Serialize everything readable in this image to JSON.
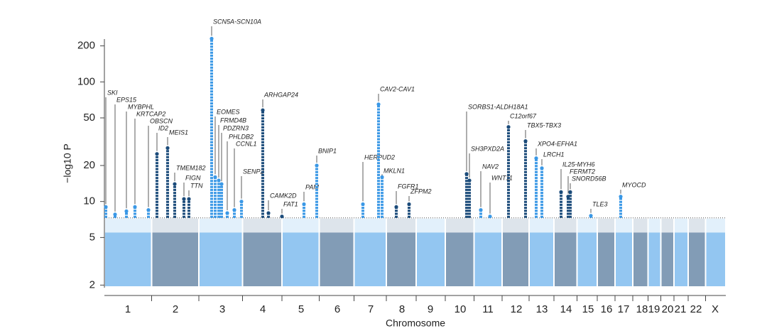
{
  "chart_data": {
    "type": "manhattan",
    "x_label": "Chromosome",
    "y_label": "−log10 P",
    "categories": [
      "1",
      "2",
      "3",
      "4",
      "5",
      "6",
      "7",
      "8",
      "9",
      "10",
      "11",
      "12",
      "13",
      "14",
      "15",
      "16",
      "17",
      "18",
      "19",
      "20",
      "21",
      "22",
      "X"
    ],
    "colors": [
      "#3a98e6",
      "#1b4b7a"
    ],
    "log_y": true,
    "ylim": [
      1.66,
      280
    ],
    "yticks": [
      2,
      5,
      10,
      20,
      50,
      100,
      200
    ],
    "threshold": 7.3,
    "loci": [
      {
        "name": "SKI",
        "chromosome": 0,
        "value": 9
      },
      {
        "name": "EPS15",
        "chromosome": 0,
        "value": 7.8
      },
      {
        "name": "MYBPHL",
        "chromosome": 0,
        "value": 8.3
      },
      {
        "name": "KRTCAP2",
        "chromosome": 0,
        "value": 9
      },
      {
        "name": "OBSCN",
        "chromosome": 0,
        "value": 8.5
      },
      {
        "name": "ID2",
        "chromosome": 1,
        "value": 25
      },
      {
        "name": "MEIS1",
        "chromosome": 1,
        "value": 28
      },
      {
        "name": "TMEM182",
        "chromosome": 1,
        "value": 14
      },
      {
        "name": "FIGN",
        "chromosome": 1,
        "value": 10.5
      },
      {
        "name": "TTN",
        "chromosome": 1,
        "value": 10.5
      },
      {
        "name": "SCN5A-SCN10A",
        "chromosome": 2,
        "value": 230
      },
      {
        "name": "EOMES",
        "chromosome": 2,
        "value": 16
      },
      {
        "name": "FRMD4B",
        "chromosome": 2,
        "value": 15
      },
      {
        "name": "PDZRN3",
        "chromosome": 2,
        "value": 14
      },
      {
        "name": "PHLDB2",
        "chromosome": 2,
        "value": 8
      },
      {
        "name": "CCNL1",
        "chromosome": 2,
        "value": 8.5
      },
      {
        "name": "SENP2",
        "chromosome": 2,
        "value": 10
      },
      {
        "name": "ARHGAP24",
        "chromosome": 3,
        "value": 58
      },
      {
        "name": "CAMK2D",
        "chromosome": 3,
        "value": 8
      },
      {
        "name": "FAT1",
        "chromosome": 3,
        "value": 7.5
      },
      {
        "name": "PAM",
        "chromosome": 4,
        "value": 9.5
      },
      {
        "name": "BNIP1",
        "chromosome": 4,
        "value": 20
      },
      {
        "name": "HERPUD2",
        "chromosome": 6,
        "value": 9.5
      },
      {
        "name": "CAV2-CAV1",
        "chromosome": 6,
        "value": 65
      },
      {
        "name": "MKLN1",
        "chromosome": 6,
        "value": 16
      },
      {
        "name": "FGFR1",
        "chromosome": 7,
        "value": 9
      },
      {
        "name": "ZFPM2",
        "chromosome": 7,
        "value": 9.5
      },
      {
        "name": "SORBS1-ALDH18A1",
        "chromosome": 9,
        "value": 17
      },
      {
        "name": "SH3PXD2A",
        "chromosome": 9,
        "value": 15
      },
      {
        "name": "NAV2",
        "chromosome": 10,
        "value": 8.5
      },
      {
        "name": "WNT11",
        "chromosome": 10,
        "value": 7.5
      },
      {
        "name": "C12orf67",
        "chromosome": 11,
        "value": 42
      },
      {
        "name": "TBX5-TBX3",
        "chromosome": 11,
        "value": 32
      },
      {
        "name": "XPO4-EFHA1",
        "chromosome": 12,
        "value": 23
      },
      {
        "name": "LRCH1",
        "chromosome": 12,
        "value": 19
      },
      {
        "name": "IL25-MYH6",
        "chromosome": 13,
        "value": 12
      },
      {
        "name": "FERMT2",
        "chromosome": 13,
        "value": 11
      },
      {
        "name": "SNORD56B",
        "chromosome": 13,
        "value": 12
      },
      {
        "name": "TLE3",
        "chromosome": 14,
        "value": 7.6
      },
      {
        "name": "MYOCD",
        "chromosome": 16,
        "value": 11
      }
    ]
  }
}
